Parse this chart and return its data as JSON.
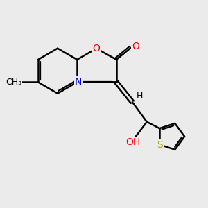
{
  "background_color": "#ebebeb",
  "atom_colors": {
    "C": "#000000",
    "O": "#ff0000",
    "N": "#0000ff",
    "S": "#aaaa00",
    "H": "#000000"
  },
  "bond_color": "#000000",
  "bond_width": 1.8,
  "font_size_atom": 10,
  "xlim": [
    -2.5,
    5.0
  ],
  "ylim": [
    -4.5,
    3.2
  ]
}
